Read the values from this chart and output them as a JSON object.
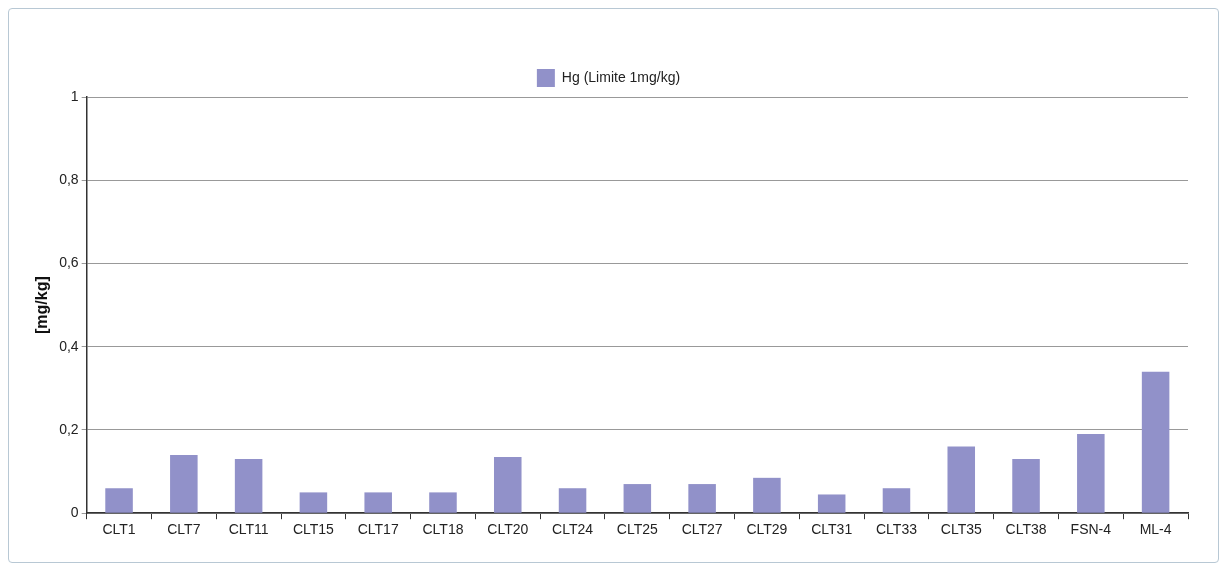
{
  "chart_data": {
    "type": "bar",
    "categories": [
      "CLT1",
      "CLT7",
      "CLT11",
      "CLT15",
      "CLT17",
      "CLT18",
      "CLT20",
      "CLT24",
      "CLT25",
      "CLT27",
      "CLT29",
      "CLT31",
      "CLT33",
      "CLT35",
      "CLT38",
      "FSN-4",
      "ML-4"
    ],
    "series": [
      {
        "name": "Hg (Limite 1mg/kg)",
        "color": "#9191c9",
        "values": [
          0.06,
          0.14,
          0.13,
          0.05,
          0.05,
          0.05,
          0.135,
          0.06,
          0.07,
          0.07,
          0.085,
          0.045,
          0.06,
          0.16,
          0.13,
          0.19,
          0.34
        ]
      }
    ],
    "ylabel": "[mg/kg]",
    "ylim": [
      0,
      1
    ],
    "yticks": [
      0,
      {
        "value": 0.2,
        "label": "0,2"
      },
      {
        "value": 0.4,
        "label": "0,4"
      },
      {
        "value": 0.6,
        "label": "0,6"
      },
      {
        "value": 0.8,
        "label": "0,8"
      },
      1
    ],
    "grid": "y",
    "legend": "top"
  }
}
